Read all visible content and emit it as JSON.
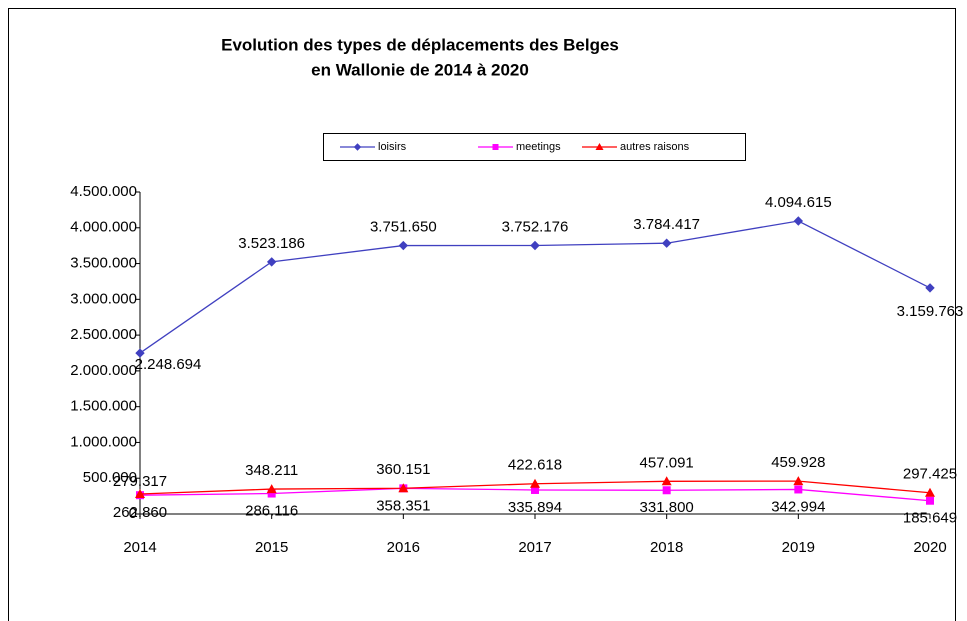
{
  "chart_data": {
    "type": "line",
    "title": "Evolution des types de déplacements des Belges",
    "subtitle": "en Wallonie de 2014 à 2020",
    "categories": [
      "2014",
      "2015",
      "2016",
      "2017",
      "2018",
      "2019",
      "2020"
    ],
    "series": [
      {
        "name": "loisirs",
        "color": "#4040c0",
        "marker": "diamond",
        "values": [
          2248694,
          3523186,
          3751650,
          3752176,
          3784417,
          4094615,
          3159763
        ],
        "value_labels": [
          "2.248.694",
          "3.523.186",
          "3.751.650",
          "3.752.176",
          "3.784.417",
          "4.094.615",
          "3.159.763"
        ]
      },
      {
        "name": "meetings",
        "color": "#ff00ff",
        "marker": "square",
        "values": [
          262860,
          286116,
          358351,
          335894,
          331800,
          342994,
          185649
        ],
        "value_labels": [
          "262.860",
          "286.116",
          "358.351",
          "335.894",
          "331.800",
          "342.994",
          "185.649"
        ]
      },
      {
        "name": "autres raisons",
        "color": "#ff0000",
        "marker": "triangle",
        "values": [
          279317,
          348211,
          360151,
          422618,
          457091,
          459928,
          297425
        ],
        "value_labels": [
          "279.317",
          "348.211",
          "360.151",
          "422.618",
          "457.091",
          "459.928",
          "297.425"
        ]
      }
    ],
    "ylim": [
      0,
      4500000
    ],
    "yticks": [
      0,
      {
        "value": 500000,
        "label": "500.000"
      },
      {
        "value": 1000000,
        "label": "1.000.000"
      },
      {
        "value": 1500000,
        "label": "1.500.000"
      },
      {
        "value": 2000000,
        "label": "2.000.000"
      },
      {
        "value": 2500000,
        "label": "2.500.000"
      },
      {
        "value": 3000000,
        "label": "3.000.000"
      },
      {
        "value": 3500000,
        "label": "3.500.000"
      },
      {
        "value": 4000000,
        "label": "4.000.000"
      },
      {
        "value": 4500000,
        "label": "4.500.000"
      }
    ],
    "grid": false,
    "legend": "top"
  }
}
